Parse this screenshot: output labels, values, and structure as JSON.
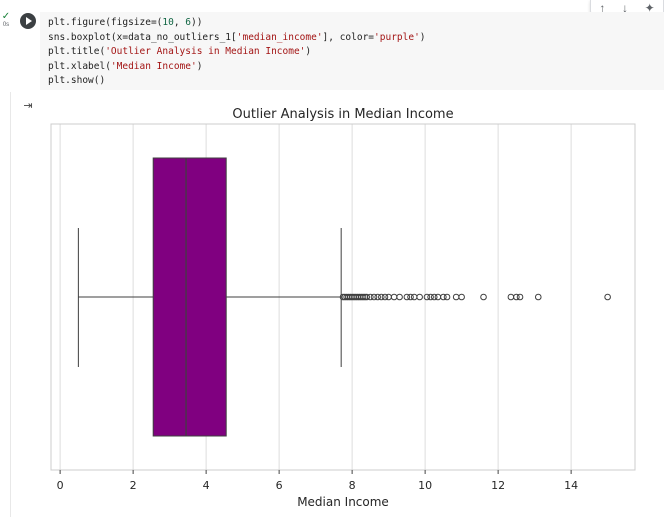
{
  "toolbar": {
    "up": "↑",
    "down": "↓",
    "magic": "✦"
  },
  "exec": {
    "check": "✓",
    "time": "0s"
  },
  "code_lines": [
    "plt.figure(figsize=(10, 6))",
    "sns.boxplot(x=data_no_outliers_1['median_income'], color='purple')",
    "plt.title('Outlier Analysis in Median Income')",
    "plt.xlabel('Median Income')",
    "plt.show()"
  ],
  "output_icon": "⇥",
  "chart_data": {
    "type": "boxplot",
    "title": "Outlier Analysis in Median Income",
    "xlabel": "Median Income",
    "xlim": [
      -0.25,
      15.75
    ],
    "xticks": [
      0,
      2,
      4,
      6,
      8,
      10,
      12,
      14
    ],
    "grid": true,
    "box_color": "#800080",
    "whisker_low": 0.5,
    "q1": 2.55,
    "median": 3.45,
    "q3": 4.55,
    "whisker_high": 7.7,
    "outliers": [
      7.75,
      7.8,
      7.85,
      7.9,
      7.95,
      8.0,
      8.05,
      8.1,
      8.15,
      8.2,
      8.25,
      8.3,
      8.35,
      8.4,
      8.5,
      8.6,
      8.7,
      8.8,
      8.9,
      9.0,
      9.15,
      9.3,
      9.5,
      9.6,
      9.7,
      9.85,
      10.05,
      10.15,
      10.25,
      10.35,
      10.5,
      10.6,
      10.85,
      11.0,
      11.6,
      12.35,
      12.5,
      12.6,
      13.1,
      15.0
    ]
  }
}
